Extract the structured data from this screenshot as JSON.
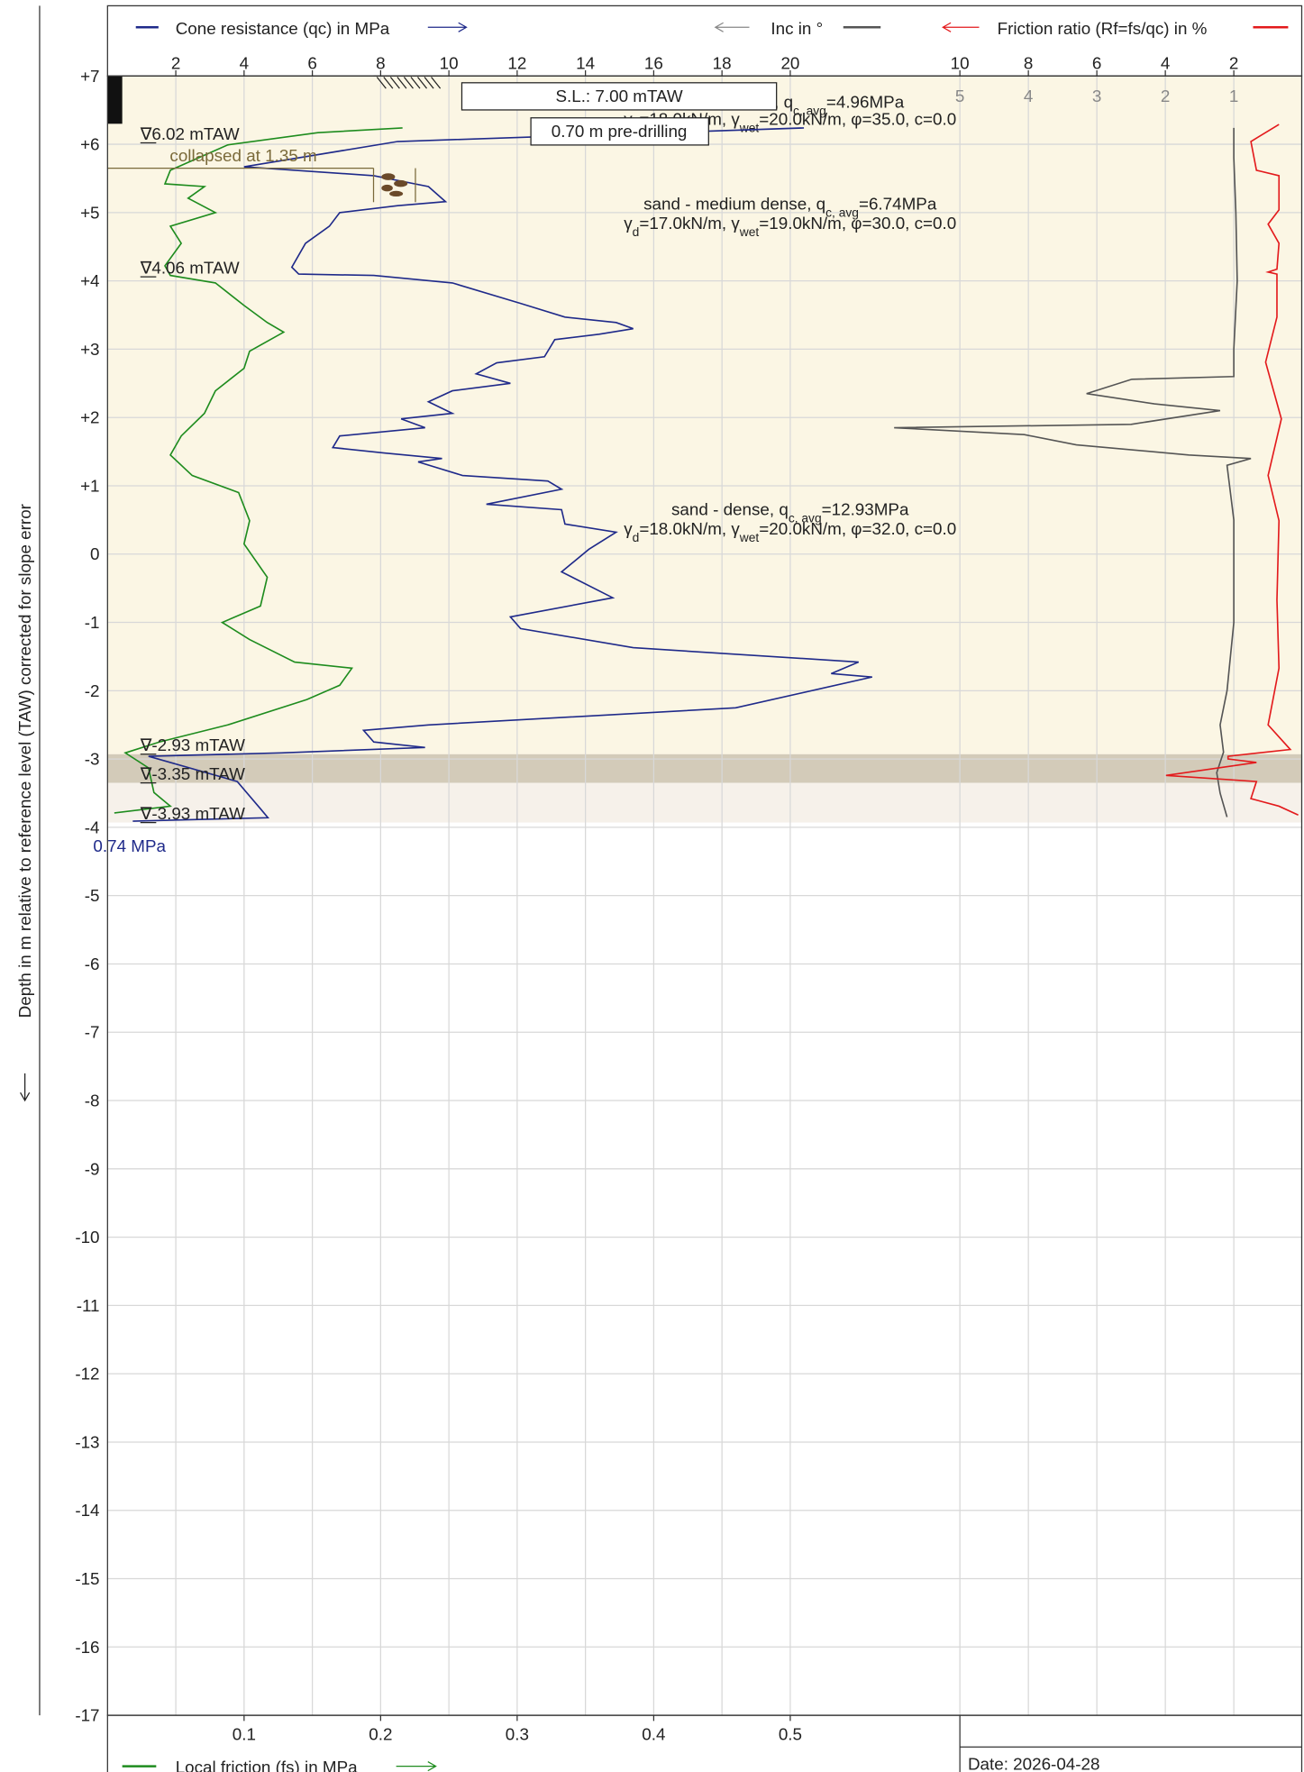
{
  "chart_data": {
    "type": "cpt",
    "ylabel": "Depth in m relative to reference level (TAW) corrected for slope error",
    "ylim": [
      -17,
      7
    ],
    "yticks": [
      {
        "value": 7,
        "label": "+7"
      },
      {
        "value": 6,
        "label": "+6"
      },
      {
        "value": 5,
        "label": "+5"
      },
      {
        "value": 4,
        "label": "+4"
      },
      {
        "value": 3,
        "label": "+3"
      },
      {
        "value": 2,
        "label": "+2"
      },
      {
        "value": 1,
        "label": "+1"
      },
      0,
      -1,
      -2,
      -3,
      -4,
      -5,
      -6,
      -7,
      -8,
      -9,
      -10,
      -11,
      -12,
      -13,
      -14,
      -15,
      -16,
      -17
    ],
    "grid": true,
    "axes": {
      "qc": {
        "lim": [
          0,
          35
        ],
        "ticks": [
          2,
          4,
          6,
          8,
          10,
          12,
          14,
          16,
          18,
          20
        ],
        "side": "top"
      },
      "fs": {
        "lim": [
          0,
          0.875
        ],
        "ticks": [
          0.1,
          0.2,
          0.3,
          0.4,
          0.5
        ],
        "side": "bottom"
      },
      "inc": {
        "lim": [
          0,
          5
        ],
        "ticks": [
          5,
          4,
          3,
          2,
          1
        ],
        "reversed": true,
        "side": "top",
        "color": "#888888"
      },
      "rf": {
        "lim": [
          0,
          10
        ],
        "ticks": [
          10,
          8,
          6,
          4,
          2
        ],
        "reversed": true,
        "side": "top"
      }
    },
    "series": [
      {
        "name": "Cone resistance (qc) in MPa",
        "color": "#1f2a8a",
        "axis": "qc",
        "depth": [
          6.24,
          6.04,
          5.67,
          5.54,
          5.38,
          5.16,
          5.1,
          5.0,
          4.8,
          4.55,
          4.2,
          4.1,
          4.08,
          3.97,
          3.67,
          3.47,
          3.39,
          3.3,
          3.22,
          3.14,
          2.89,
          2.8,
          2.64,
          2.5,
          2.39,
          2.23,
          2.06,
          1.98,
          1.85,
          1.73,
          1.56,
          1.48,
          1.4,
          1.35,
          1.15,
          1.07,
          0.95,
          0.73,
          0.65,
          0.44,
          0.32,
          0.07,
          -0.26,
          -0.64,
          -0.92,
          -1.09,
          -1.37,
          -1.58,
          -1.75,
          -1.8,
          -2.25,
          -2.5,
          -2.58,
          -2.75,
          -2.83,
          -2.91,
          -2.96,
          -3.33,
          -3.74,
          -3.86,
          -3.91
        ],
        "values": [
          20.4,
          8.5,
          4.0,
          7.8,
          9.4,
          9.9,
          8.5,
          6.8,
          6.5,
          5.8,
          5.4,
          5.6,
          7.8,
          10.1,
          12.1,
          13.4,
          14.9,
          15.4,
          14.4,
          13.1,
          12.8,
          11.4,
          10.8,
          11.8,
          10.1,
          9.4,
          10.1,
          8.6,
          9.3,
          6.8,
          6.6,
          8.1,
          9.8,
          9.1,
          10.4,
          12.9,
          13.3,
          11.1,
          13.3,
          13.4,
          14.9,
          14.1,
          13.3,
          14.8,
          11.8,
          12.1,
          15.4,
          22.0,
          21.2,
          22.4,
          18.4,
          9.4,
          7.5,
          7.8,
          9.3,
          5.1,
          1.2,
          3.8,
          4.5,
          4.7,
          0.74
        ]
      },
      {
        "name": "Local friction (fs) in MPa",
        "color": "#1e8c1e",
        "axis": "fs",
        "depth": [
          6.24,
          6.17,
          5.99,
          5.62,
          5.42,
          5.38,
          5.21,
          5.0,
          4.8,
          4.55,
          4.22,
          4.08,
          3.97,
          3.64,
          3.39,
          3.25,
          2.97,
          2.72,
          2.39,
          2.06,
          1.73,
          1.45,
          1.15,
          0.9,
          0.49,
          0.15,
          -0.34,
          -0.76,
          -1.0,
          -1.25,
          -1.58,
          -1.67,
          -1.92,
          -2.13,
          -2.5,
          -2.75,
          -2.91,
          -3.13,
          -3.49,
          -3.69,
          -3.79
        ],
        "values": [
          0.216,
          0.154,
          0.088,
          0.046,
          0.042,
          0.071,
          0.059,
          0.079,
          0.046,
          0.054,
          0.042,
          0.046,
          0.079,
          0.1,
          0.117,
          0.129,
          0.104,
          0.1,
          0.079,
          0.071,
          0.054,
          0.046,
          0.062,
          0.096,
          0.104,
          0.1,
          0.117,
          0.112,
          0.084,
          0.104,
          0.137,
          0.179,
          0.17,
          0.146,
          0.088,
          0.038,
          0.013,
          0.03,
          0.034,
          0.046,
          0.005
        ]
      },
      {
        "name": "Inc in °",
        "color": "#555555",
        "axis": "inc",
        "depth": [
          6.24,
          5.8,
          5.0,
          4.0,
          3.0,
          2.6,
          2.56,
          2.35,
          2.2,
          2.1,
          1.9,
          1.85,
          1.75,
          1.6,
          1.45,
          1.4,
          1.3,
          0.5,
          -1.0,
          -2.0,
          -2.5,
          -2.9,
          -3.2,
          -3.5,
          -3.85
        ],
        "values": [
          1.0,
          1.0,
          0.97,
          0.95,
          1.0,
          1.0,
          2.49,
          3.15,
          2.16,
          1.2,
          2.5,
          5.96,
          4.06,
          3.3,
          1.66,
          0.75,
          1.1,
          1.0,
          1.0,
          1.1,
          1.2,
          1.15,
          1.25,
          1.2,
          1.1
        ]
      },
      {
        "name": "Friction ratio (Rf=fs/qc) in %",
        "color": "#e31a1c",
        "axis": "rf",
        "depth": [
          6.29,
          6.04,
          5.62,
          5.54,
          5.04,
          4.83,
          4.55,
          4.17,
          4.13,
          4.1,
          3.47,
          2.81,
          1.98,
          1.15,
          0.49,
          -0.67,
          -1.67,
          -2.5,
          -2.86,
          -2.96,
          -3.0,
          -3.05,
          -3.24,
          -3.33,
          -3.58,
          -3.69,
          -3.82
        ],
        "values": [
          0.68,
          1.5,
          1.34,
          0.68,
          0.68,
          1.0,
          0.68,
          0.74,
          1.0,
          0.74,
          0.74,
          1.07,
          0.61,
          1.0,
          0.68,
          0.74,
          0.68,
          1.0,
          0.35,
          2.17,
          2.17,
          1.34,
          3.98,
          1.34,
          1.5,
          0.68,
          0.12
        ]
      }
    ],
    "layers": [
      {
        "top": 7,
        "bottom": -2.93,
        "color": "#fbf6e4"
      },
      {
        "top": -2.93,
        "bottom": -3.35,
        "color": "#d3cbb9"
      },
      {
        "top": -3.35,
        "bottom": -3.93,
        "color": "#f6f1ea"
      }
    ],
    "soil_notes": [
      [
        [
          "sand - dense, q",
          "c, avg",
          "=4.96MPa"
        ],
        [
          "γ",
          "d",
          "=18.0kN/m, γ",
          "wet",
          "=20.0kN/m, φ=35.0, c=0.0"
        ]
      ],
      [
        [
          "sand - medium dense, q",
          "c, avg",
          "=6.74MPa"
        ],
        [
          "γ",
          "d",
          "=17.0kN/m, γ",
          "wet",
          "=19.0kN/m, φ=30.0, c=0.0"
        ]
      ],
      [
        [
          "sand - dense, q",
          "c, avg",
          "=12.93MPa"
        ],
        [
          "γ",
          "d",
          "=18.0kN/m, γ",
          "wet",
          "=20.0kN/m, φ=32.0, c=0.0"
        ]
      ]
    ],
    "surface_level": {
      "label": "S.L.: 7.00 mTAW"
    },
    "predrill": {
      "label": "0.70 m pre-drilling",
      "top": 7,
      "bottom": 6.3
    },
    "collapse": {
      "label": "collapsed at 1.35 m",
      "level": 5.65
    },
    "water_levels": [
      {
        "level": 6.02,
        "label": "∇6.02 mTAW"
      },
      {
        "level": 4.06,
        "label": "∇4.06 mTAW"
      },
      {
        "level": -2.93,
        "label": "∇-2.93 mTAW"
      },
      {
        "level": -3.35,
        "label": "∇-3.35 mTAW"
      },
      {
        "level": -3.93,
        "label": "∇-3.93 mTAW"
      }
    ],
    "end_label": "0.74 MPa",
    "date": "Date: 2026-04-28"
  }
}
